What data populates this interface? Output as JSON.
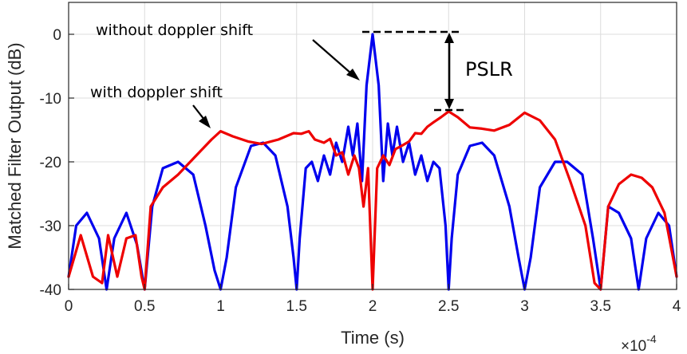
{
  "chart_data": {
    "type": "line",
    "xlabel": "Time (s)",
    "ylabel": "Matched Filter Output (dB)",
    "x_exponent": "×10",
    "x_exponent_power": "-4",
    "xlim": [
      0,
      4
    ],
    "ylim": [
      -40,
      5
    ],
    "xticks": [
      "0",
      "0.5",
      "1",
      "1.5",
      "2",
      "2.5",
      "3",
      "3.5",
      "4"
    ],
    "yticks": [
      "0",
      "-10",
      "-20",
      "-30",
      "-40"
    ],
    "grid": true,
    "colors": {
      "without": "#0000ee",
      "with": "#ee0000"
    },
    "series": [
      {
        "label": "without  doppler shift",
        "x": [
          0,
          0.05,
          0.12,
          0.2,
          0.25,
          0.3,
          0.38,
          0.45,
          0.5,
          0.55,
          0.62,
          0.72,
          0.82,
          0.9,
          0.96,
          1.0,
          1.04,
          1.1,
          1.2,
          1.28,
          1.36,
          1.44,
          1.48,
          1.5,
          1.52,
          1.56,
          1.6,
          1.64,
          1.68,
          1.72,
          1.76,
          1.8,
          1.84,
          1.87,
          1.9,
          1.93,
          1.96,
          2.0,
          2.04,
          2.07,
          2.1,
          2.13,
          2.16,
          2.2,
          2.24,
          2.28,
          2.32,
          2.36,
          2.4,
          2.44,
          2.48,
          2.5,
          2.52,
          2.56,
          2.64,
          2.72,
          2.8,
          2.9,
          2.96,
          3.0,
          3.04,
          3.1,
          3.2,
          3.28,
          3.38,
          3.45,
          3.5,
          3.55,
          3.62,
          3.7,
          3.75,
          3.8,
          3.88,
          3.95,
          4.0
        ],
        "y": [
          -38,
          -30,
          -28,
          -32,
          -40,
          -32,
          -28,
          -33,
          -40,
          -27,
          -21,
          -20,
          -22,
          -30,
          -37,
          -40,
          -35,
          -24,
          -17.5,
          -17,
          -19,
          -27,
          -35,
          -40,
          -32,
          -21,
          -20,
          -23,
          -19,
          -22,
          -17,
          -20,
          -14.5,
          -19,
          -14,
          -23,
          -8,
          0,
          -8,
          -23,
          -14,
          -19,
          -14.5,
          -20,
          -17,
          -22,
          -19,
          -23,
          -20,
          -21,
          -30,
          -40,
          -32,
          -22,
          -17.5,
          -17,
          -19,
          -27,
          -35,
          -40,
          -35,
          -24,
          -20,
          -20,
          -22,
          -32,
          -40,
          -27,
          -28,
          -32,
          -40,
          -32,
          -28,
          -30,
          -38
        ]
      },
      {
        "label": "with doppler shift",
        "x": [
          0,
          0.08,
          0.16,
          0.22,
          0.26,
          0.32,
          0.38,
          0.44,
          0.48,
          0.5,
          0.54,
          0.62,
          0.72,
          0.84,
          0.94,
          1.0,
          1.08,
          1.18,
          1.27,
          1.38,
          1.48,
          1.53,
          1.58,
          1.62,
          1.68,
          1.72,
          1.76,
          1.8,
          1.84,
          1.88,
          1.91,
          1.94,
          1.97,
          2.0,
          2.03,
          2.07,
          2.11,
          2.15,
          2.19,
          2.24,
          2.28,
          2.32,
          2.36,
          2.4,
          2.45,
          2.5,
          2.56,
          2.64,
          2.72,
          2.8,
          2.9,
          3.0,
          3.1,
          3.2,
          3.3,
          3.4,
          3.46,
          3.5,
          3.55,
          3.62,
          3.7,
          3.77,
          3.84,
          3.92,
          4.0
        ],
        "y": [
          -38,
          -31.5,
          -38,
          -39,
          -31.5,
          -38,
          -32,
          -31.5,
          -38,
          -40,
          -27,
          -24,
          -22,
          -19,
          -16.5,
          -15.2,
          -16,
          -16.8,
          -17.2,
          -16.5,
          -15.5,
          -15.6,
          -15.2,
          -16.5,
          -17,
          -16.4,
          -19,
          -18.5,
          -22,
          -19,
          -21,
          -27,
          -21,
          -40,
          -21,
          -19,
          -20.5,
          -18,
          -17.5,
          -16.8,
          -15.5,
          -15.6,
          -14.5,
          -13.8,
          -13,
          -12.1,
          -13,
          -14.6,
          -14.8,
          -15.1,
          -14.2,
          -12.3,
          -13.5,
          -16.5,
          -23,
          -30,
          -39,
          -40,
          -27,
          -23.5,
          -22,
          -22.5,
          -24,
          -28,
          -38
        ]
      }
    ],
    "annotations": {
      "without_label": "without  doppler shift",
      "with_label": "with doppler shift",
      "pslr_label": "PSLR"
    }
  }
}
